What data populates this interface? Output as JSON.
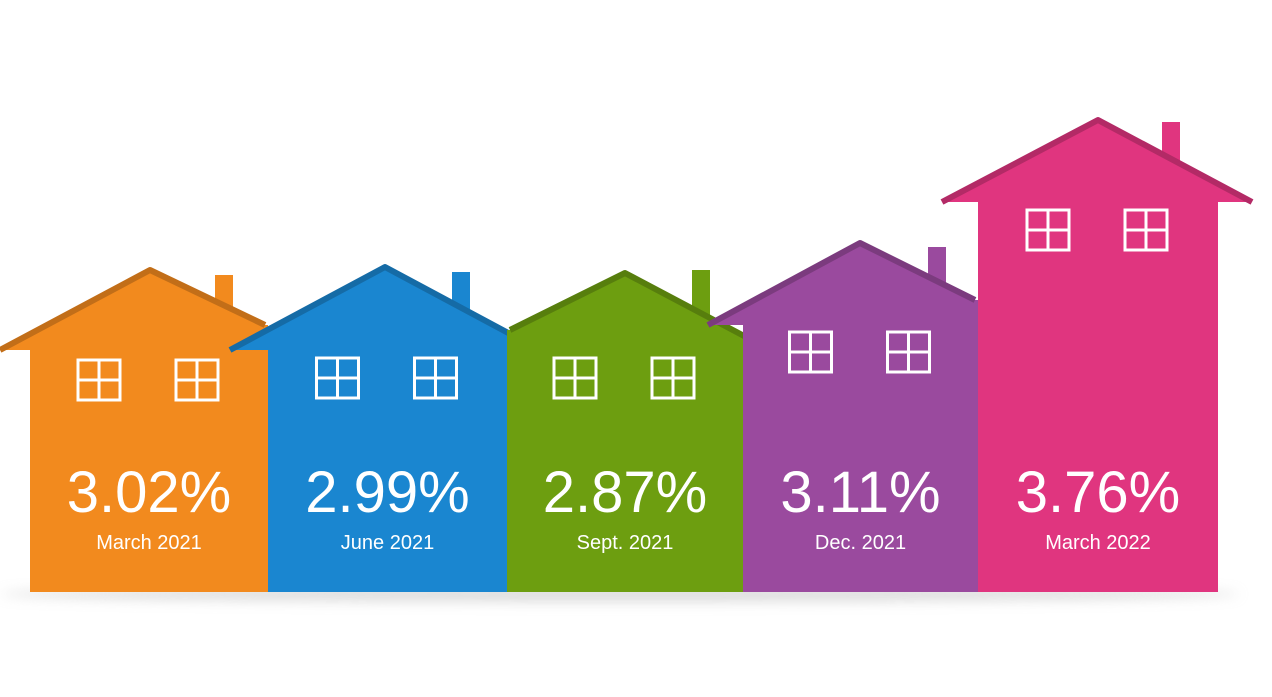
{
  "chart_data": {
    "type": "bar",
    "categories": [
      "March 2021",
      "June 2021",
      "Sept. 2021",
      "Dec. 2021",
      "March 2022"
    ],
    "values": [
      3.02,
      2.99,
      2.87,
      3.11,
      3.76
    ],
    "value_labels": [
      "3.02%",
      "2.99%",
      "2.87%",
      "3.11%",
      "3.76%"
    ],
    "colors": [
      "#f28a1e",
      "#1a86d0",
      "#6d9e10",
      "#9a4a9e",
      "#e0357f"
    ]
  }
}
